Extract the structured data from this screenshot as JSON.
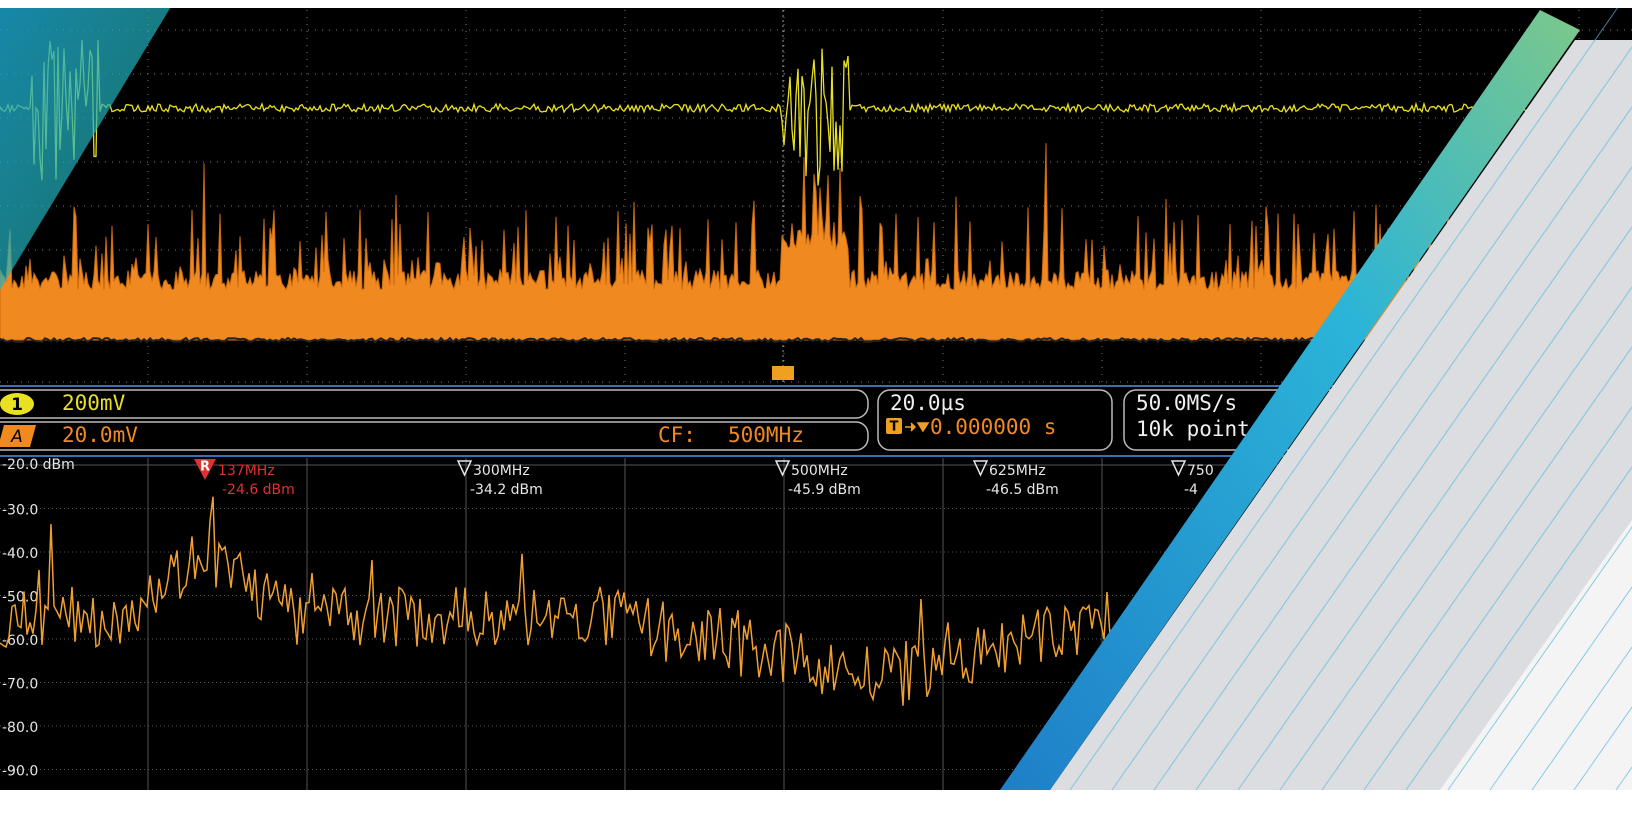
{
  "channels": [
    {
      "badge": "1",
      "scale": "200mV"
    },
    {
      "badge": "A",
      "scale": "20.0mV"
    }
  ],
  "center_frequency": {
    "label": "CF:",
    "value": "500MHz"
  },
  "timebase": {
    "scale": "20.0µs",
    "trigger_badge": "T",
    "trigger_position": "0.000000 s"
  },
  "acquisition": {
    "sample_rate": "50.0MS/s",
    "record_length": "10k point"
  },
  "spectrum": {
    "y_labels": [
      "-20.0 dBm",
      "-30.0",
      "-40.0",
      "-50.0",
      "-60.0",
      "-70.0",
      "-80.0",
      "-90.0"
    ],
    "reference_marker": {
      "badge": "R",
      "frequency": "137MHz",
      "amplitude": "-24.6 dBm"
    },
    "markers": [
      {
        "frequency": "300MHz",
        "amplitude": "-34.2 dBm"
      },
      {
        "frequency": "500MHz",
        "amplitude": "-45.9 dBm"
      },
      {
        "frequency": "625MHz",
        "amplitude": "-46.5 dBm"
      },
      {
        "frequency": "750",
        "amplitude": "-4"
      }
    ]
  }
}
